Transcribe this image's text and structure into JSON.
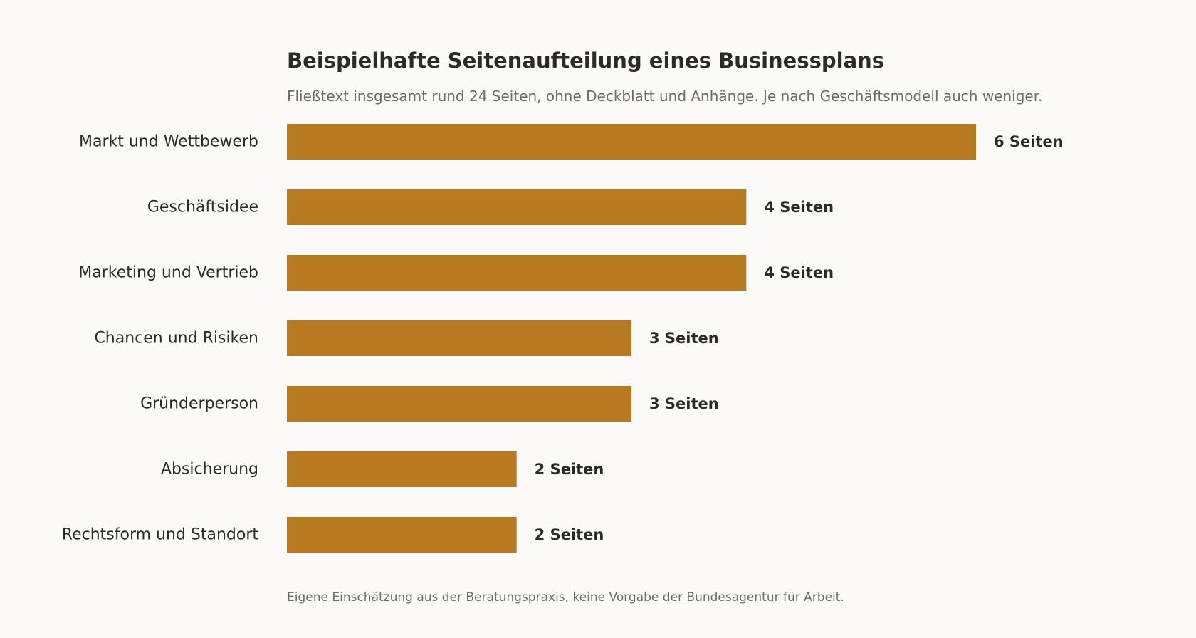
{
  "chart_data": {
    "type": "bar",
    "orientation": "horizontal",
    "title": "Beispielhafte Seitenaufteilung eines Businessplans",
    "subtitle": "Fließtext insgesamt rund 24 Seiten, ohne Deckblatt und Anhänge. Je nach Geschäftsmodell auch weniger.",
    "source_note": "Eigene Einschätzung aus der Beratungspraxis, keine Vorgabe der Bundesagentur für Arbeit.",
    "categories": [
      "Markt und Wettbewerb",
      "Geschäftsidee",
      "Marketing und Vertrieb",
      "Chancen und Risiken",
      "Gründerperson",
      "Absicherung",
      "Rechtsform und Standort"
    ],
    "values": [
      6,
      4,
      4,
      3,
      3,
      2,
      2
    ],
    "value_labels": [
      "6 Seiten",
      "4 Seiten",
      "4 Seiten",
      "3 Seiten",
      "3 Seiten",
      "2 Seiten",
      "2 Seiten"
    ],
    "xlim": [
      0,
      6
    ],
    "grid": false,
    "legend": "none",
    "bar_color": "#b87a20",
    "background_color": "#fbfaf8",
    "text_color": "#2b2a26",
    "muted_text_color": "#6f6c66"
  }
}
